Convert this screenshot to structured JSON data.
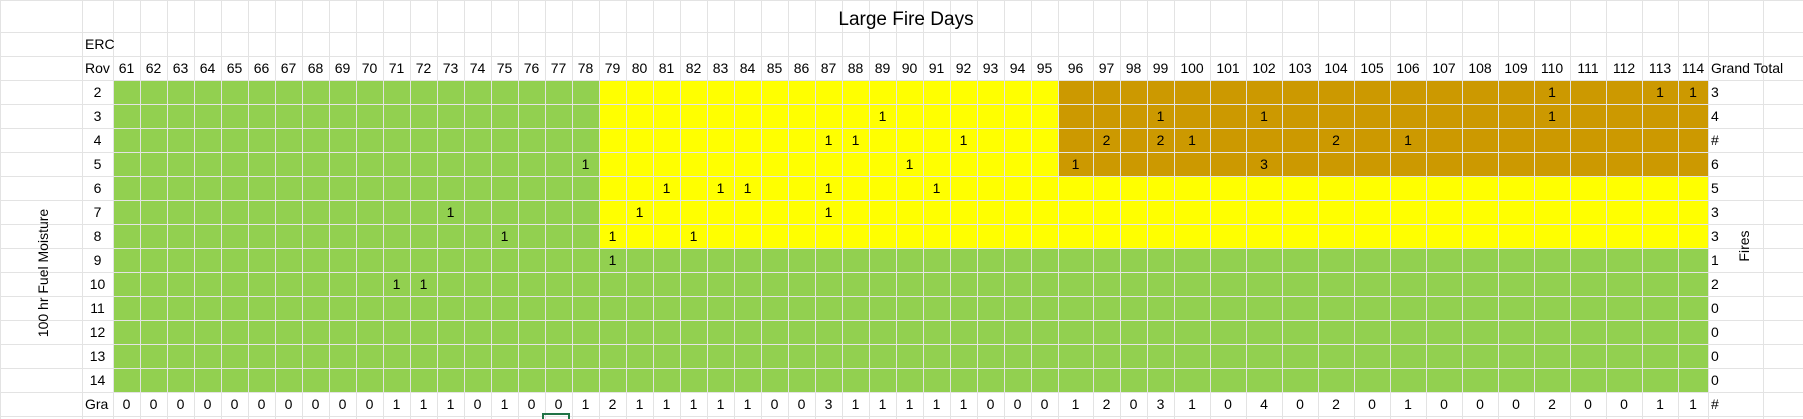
{
  "title": "Large Fire Days",
  "erc_label": "ERC",
  "row_header_label": "Rov",
  "grand_total_col_label": "Grand Total",
  "grand_total_row_label": "Gra",
  "y_axis_label": "100 hr Fuel Moisture",
  "right_label": "Fires",
  "colors": {
    "green": "#92d050",
    "yellow": "#ffff00",
    "brown": "#cc9900",
    "gridline": "#e3e3e3",
    "selection": "#217346"
  },
  "columns": [
    "61",
    "62",
    "63",
    "64",
    "65",
    "66",
    "67",
    "68",
    "69",
    "70",
    "71",
    "72",
    "73",
    "74",
    "75",
    "76",
    "77",
    "78",
    "79",
    "80",
    "81",
    "82",
    "83",
    "84",
    "85",
    "86",
    "87",
    "88",
    "89",
    "90",
    "91",
    "92",
    "93",
    "94",
    "95",
    "96",
    "97",
    "98",
    "99",
    "100",
    "101",
    "102",
    "103",
    "104",
    "105",
    "106",
    "107",
    "108",
    "109",
    "110",
    "111",
    "112",
    "113",
    "114"
  ],
  "rows": [
    {
      "label": "2",
      "total": "3",
      "cells": {
        "110": "1",
        "113": "1",
        "114": "1"
      }
    },
    {
      "label": "3",
      "total": "4",
      "cells": {
        "89": "1",
        "99": "1",
        "102": "1",
        "110": "1"
      }
    },
    {
      "label": "4",
      "total": "#",
      "cells": {
        "87": "1",
        "88": "1",
        "92": "1",
        "97": "2",
        "99": "2",
        "100": "1",
        "104": "2",
        "106": "1"
      }
    },
    {
      "label": "5",
      "total": "6",
      "cells": {
        "78": "1",
        "90": "1",
        "96": "1",
        "102": "3"
      }
    },
    {
      "label": "6",
      "total": "5",
      "cells": {
        "81": "1",
        "83": "1",
        "84": "1",
        "87": "1",
        "91": "1"
      }
    },
    {
      "label": "7",
      "total": "3",
      "cells": {
        "73": "1",
        "80": "1",
        "87": "1"
      }
    },
    {
      "label": "8",
      "total": "3",
      "cells": {
        "75": "1",
        "79": "1",
        "82": "1"
      }
    },
    {
      "label": "9",
      "total": "1",
      "cells": {
        "79": "1"
      }
    },
    {
      "label": "10",
      "total": "2",
      "cells": {
        "71": "1",
        "72": "1"
      }
    },
    {
      "label": "11",
      "total": "0",
      "cells": {}
    },
    {
      "label": "12",
      "total": "0",
      "cells": {}
    },
    {
      "label": "13",
      "total": "0",
      "cells": {}
    },
    {
      "label": "14",
      "total": "0",
      "cells": {}
    }
  ],
  "grand_totals": [
    "0",
    "0",
    "0",
    "0",
    "0",
    "0",
    "0",
    "0",
    "0",
    "0",
    "1",
    "1",
    "1",
    "0",
    "1",
    "0",
    "0",
    "1",
    "2",
    "1",
    "1",
    "1",
    "1",
    "1",
    "0",
    "0",
    "3",
    "1",
    "1",
    "1",
    "1",
    "1",
    "0",
    "0",
    "0",
    "1",
    "2",
    "0",
    "3",
    "1",
    "0",
    "4",
    "0",
    "2",
    "0",
    "1",
    "0",
    "0",
    "0",
    "2",
    "0",
    "0",
    "1",
    "1"
  ],
  "grand_total_all": "#"
}
